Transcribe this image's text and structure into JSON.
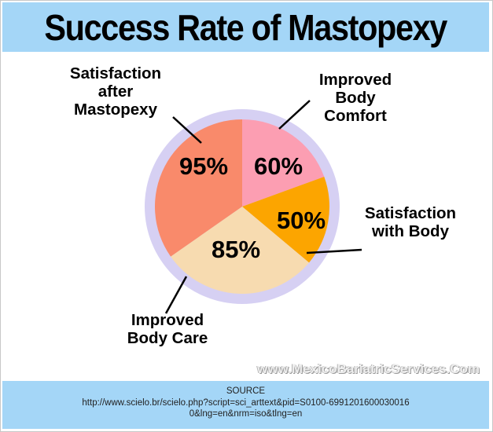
{
  "title": "Success Rate of Mastopexy",
  "watermark": "www.MexicoBariatricServices.Com",
  "source": {
    "label": "SOURCE",
    "url": "http://www.scielo.br/scielo.php?script=sci_arttext&pid=S0100-69912016000300160&lng=en&nrm=iso&tlng=en"
  },
  "colors": {
    "banner": "#a4d6f7",
    "ring": "#d6d0f3",
    "improved_body_comfort": "#fc9eb2",
    "satisfaction_with_body": "#fca500",
    "improved_body_care": "#f7dbb0",
    "satisfaction_after_mastopexy": "#f98a6b"
  },
  "chart_data": {
    "type": "pie",
    "title": "Success Rate of Mastopexy",
    "slices": [
      {
        "id": "improved-body-comfort",
        "label": [
          "Improved",
          "Body",
          "Comfort"
        ],
        "value_label": "60%",
        "value": 60,
        "share": 0.1944,
        "color": "#fc9eb2"
      },
      {
        "id": "satisfaction-with-body",
        "label": [
          "Satisfaction",
          "with Body"
        ],
        "value_label": "50%",
        "value": 50,
        "share": 0.1667,
        "color": "#fca500"
      },
      {
        "id": "improved-body-care",
        "label": [
          "Improved",
          "Body Care"
        ],
        "value_label": "85%",
        "value": 85,
        "share": 0.2917,
        "color": "#f7dbb0"
      },
      {
        "id": "satisfaction-after-mastopexy",
        "label": [
          "Satisfaction",
          "after",
          "Mastopexy"
        ],
        "value_label": "95%",
        "value": 95,
        "share": 0.3472,
        "color": "#f98a6b"
      }
    ]
  }
}
